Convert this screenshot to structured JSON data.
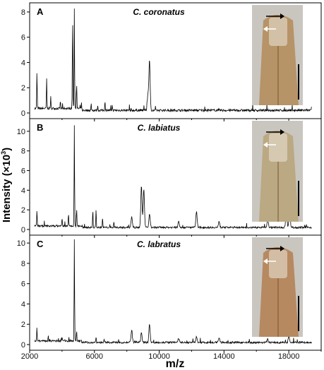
{
  "figure": {
    "ylabel_main": "Intensity (×10",
    "ylabel_sup": "3",
    "ylabel_close": ")",
    "xlabel": "m/z",
    "x_tick_labels": [
      "2000",
      "6000",
      "10000",
      "14000",
      "18000"
    ]
  },
  "chart_data": [
    {
      "type": "line",
      "panel": "A",
      "title": "C. coronatus",
      "xlim": [
        2000,
        20000
      ],
      "ylim": [
        0,
        8.5
      ],
      "y_ticks": [
        0,
        2,
        4,
        6,
        8
      ],
      "y_tick_labels": [
        "0",
        "2",
        "4",
        "6",
        "8"
      ],
      "peaks": [
        [
          2450,
          2.9
        ],
        [
          3050,
          2.3
        ],
        [
          3300,
          0.9
        ],
        [
          3900,
          0.6
        ],
        [
          4650,
          7.2
        ],
        [
          4760,
          7.9
        ],
        [
          4900,
          2.0
        ],
        [
          5200,
          0.4
        ],
        [
          5800,
          0.5
        ],
        [
          6200,
          0.4
        ],
        [
          6650,
          0.7
        ],
        [
          7100,
          0.4
        ],
        [
          9400,
          3.9
        ],
        [
          9300,
          1.2
        ]
      ],
      "image_color": "#b48a58"
    },
    {
      "type": "line",
      "panel": "B",
      "title": "C. labiatus",
      "xlim": [
        2000,
        20000
      ],
      "ylim": [
        0,
        11
      ],
      "y_ticks": [
        0,
        2,
        4,
        6,
        8,
        10
      ],
      "y_tick_labels": [
        "0",
        "2",
        "4",
        "6",
        "8",
        "10"
      ],
      "peaks": [
        [
          2450,
          1.6
        ],
        [
          4000,
          0.8
        ],
        [
          4400,
          1.2
        ],
        [
          4760,
          10.2
        ],
        [
          4900,
          1.8
        ],
        [
          5900,
          1.7
        ],
        [
          6100,
          1.9
        ],
        [
          6500,
          1.0
        ],
        [
          7200,
          0.6
        ],
        [
          8300,
          1.1
        ],
        [
          8900,
          4.2
        ],
        [
          9050,
          3.8
        ],
        [
          9400,
          1.3
        ],
        [
          11200,
          0.6
        ],
        [
          12300,
          1.6
        ],
        [
          13700,
          0.6
        ],
        [
          16700,
          0.9
        ],
        [
          17850,
          2.0
        ],
        [
          18050,
          2.2
        ]
      ],
      "image_color": "#b8a378"
    },
    {
      "type": "line",
      "panel": "C",
      "title": "C. labratus",
      "xlim": [
        2000,
        20000
      ],
      "ylim": [
        0,
        10.5
      ],
      "y_ticks": [
        0,
        2,
        4,
        6,
        8,
        10
      ],
      "y_tick_labels": [
        "0",
        "2",
        "4",
        "6",
        "8",
        "10"
      ],
      "peaks": [
        [
          2450,
          1.3
        ],
        [
          4000,
          0.4
        ],
        [
          4760,
          10.0
        ],
        [
          4900,
          1.0
        ],
        [
          6100,
          0.6
        ],
        [
          6600,
          0.3
        ],
        [
          8300,
          1.2
        ],
        [
          8900,
          0.9
        ],
        [
          9400,
          1.8
        ],
        [
          11200,
          0.4
        ],
        [
          12300,
          0.6
        ],
        [
          13700,
          0.4
        ],
        [
          16700,
          0.3
        ],
        [
          18000,
          0.6
        ]
      ],
      "image_color": "#b47e50"
    }
  ]
}
